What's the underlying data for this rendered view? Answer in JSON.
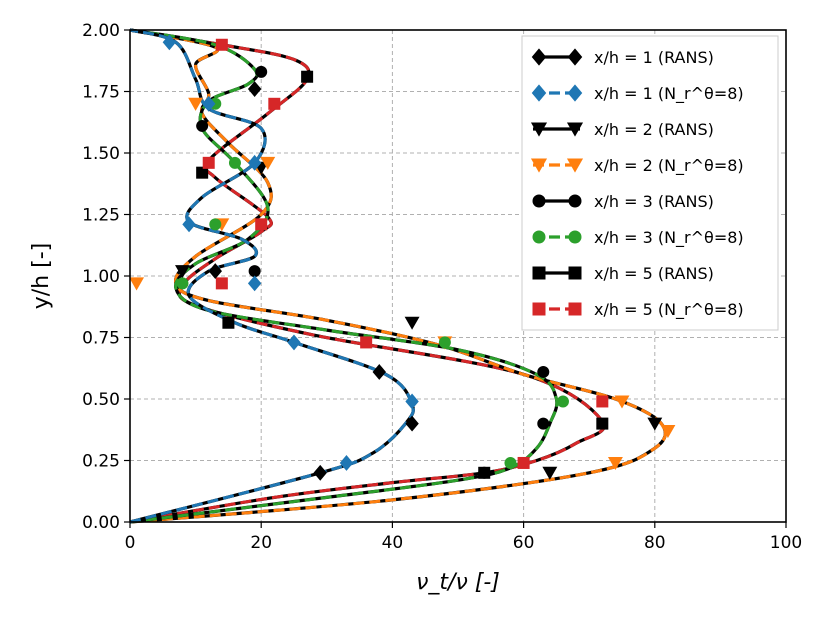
{
  "chart_data": {
    "type": "line",
    "title": "",
    "xlabel": "ν_t/ν [-]",
    "ylabel": "y/h [-]",
    "xlim": [
      0,
      100
    ],
    "ylim": [
      0,
      2
    ],
    "xticks": [
      "0",
      "20",
      "40",
      "60",
      "80",
      "100"
    ],
    "yticks": [
      "0.00",
      "0.25",
      "0.50",
      "0.75",
      "1.00",
      "1.25",
      "1.50",
      "1.75",
      "2.00"
    ],
    "grid": true,
    "legend_position": "top-right",
    "legend": [
      "x/h = 1 (RANS)",
      "x/h = 1 (N_r^θ=8)",
      "x/h = 2 (RANS)",
      "x/h = 2 (N_r^θ=8)",
      "x/h = 3 (RANS)",
      "x/h = 3 (N_r^θ=8)",
      "x/h = 5 (RANS)",
      "x/h = 5 (N_r^θ=8)"
    ],
    "series": [
      {
        "name": "x/h = 5 (RANS)",
        "color": "#000000",
        "style": "solid",
        "marker": "square",
        "x": [
          0,
          22,
          40,
          54,
          62,
          68,
          72,
          60,
          28,
          10,
          8,
          13,
          20,
          21,
          13,
          12,
          21,
          27,
          25,
          14,
          0
        ],
        "y": [
          0.0,
          0.1,
          0.16,
          0.2,
          0.25,
          0.32,
          0.41,
          0.6,
          0.76,
          0.88,
          0.96,
          1.07,
          1.18,
          1.24,
          1.4,
          1.47,
          1.66,
          1.8,
          1.88,
          1.94,
          2.0
        ]
      },
      {
        "name": "x/h = 5 (N_r^θ=8)",
        "color": "#d62728",
        "style": "dashed",
        "marker": "square",
        "x": [
          0,
          22,
          40,
          54,
          62,
          68,
          72,
          60,
          28,
          10,
          8,
          13,
          20,
          21,
          13,
          12,
          21,
          27,
          25,
          14,
          0
        ],
        "y": [
          0.0,
          0.1,
          0.16,
          0.2,
          0.25,
          0.32,
          0.41,
          0.6,
          0.76,
          0.88,
          0.96,
          1.07,
          1.18,
          1.24,
          1.4,
          1.47,
          1.66,
          1.8,
          1.88,
          1.94,
          2.0
        ]
      },
      {
        "name": "x/h = 2 (RANS)",
        "color": "#000000",
        "style": "solid",
        "marker": "triangle-down",
        "x": [
          0,
          40,
          70,
          80,
          81,
          74,
          60,
          47,
          30,
          12,
          7,
          10,
          20,
          21,
          15,
          11,
          12,
          10,
          13,
          0
        ],
        "y": [
          0.0,
          0.09,
          0.2,
          0.3,
          0.4,
          0.5,
          0.6,
          0.72,
          0.82,
          0.9,
          0.97,
          1.08,
          1.25,
          1.38,
          1.54,
          1.66,
          1.74,
          1.86,
          1.93,
          2.0
        ]
      },
      {
        "name": "x/h = 2 (N_r^θ=8)",
        "color": "#ff7f0e",
        "style": "dashed",
        "marker": "triangle-down",
        "x": [
          0,
          40,
          70,
          80,
          81,
          74,
          60,
          47,
          30,
          12,
          7,
          10,
          20,
          21,
          15,
          11,
          12,
          10,
          13,
          0
        ],
        "y": [
          0.0,
          0.09,
          0.2,
          0.3,
          0.4,
          0.5,
          0.6,
          0.72,
          0.82,
          0.9,
          0.97,
          1.08,
          1.25,
          1.38,
          1.54,
          1.66,
          1.74,
          1.86,
          1.93,
          2.0
        ]
      },
      {
        "name": "x/h = 3 (RANS)",
        "color": "#000000",
        "style": "solid",
        "marker": "circle",
        "x": [
          0,
          30,
          50,
          58,
          62,
          64,
          65,
          62,
          50,
          30,
          12,
          7,
          10,
          18,
          21,
          16,
          11,
          12,
          18,
          19,
          13,
          0
        ],
        "y": [
          0.0,
          0.1,
          0.17,
          0.22,
          0.3,
          0.4,
          0.5,
          0.6,
          0.7,
          0.78,
          0.86,
          0.95,
          1.05,
          1.15,
          1.28,
          1.46,
          1.6,
          1.71,
          1.78,
          1.84,
          1.94,
          2.0
        ]
      },
      {
        "name": "x/h = 3 (N_r^θ=8)",
        "color": "#2ca02c",
        "style": "dashed",
        "marker": "circle",
        "x": [
          0,
          30,
          50,
          58,
          62,
          64,
          65,
          62,
          50,
          30,
          12,
          7,
          10,
          18,
          21,
          16,
          11,
          12,
          18,
          19,
          13,
          0
        ],
        "y": [
          0.0,
          0.1,
          0.17,
          0.22,
          0.3,
          0.4,
          0.5,
          0.6,
          0.7,
          0.78,
          0.86,
          0.95,
          1.05,
          1.15,
          1.28,
          1.46,
          1.6,
          1.71,
          1.78,
          1.84,
          1.94,
          2.0
        ]
      },
      {
        "name": "x/h = 1 (RANS)",
        "color": "#000000",
        "style": "solid",
        "marker": "diamond",
        "x": [
          0,
          29,
          37,
          42,
          43,
          39,
          25,
          16,
          9,
          12,
          19,
          17,
          9,
          11,
          19,
          20,
          12,
          10,
          7,
          0
        ],
        "y": [
          0.0,
          0.2,
          0.28,
          0.4,
          0.48,
          0.6,
          0.73,
          0.81,
          0.92,
          1.02,
          1.08,
          1.15,
          1.22,
          1.32,
          1.46,
          1.6,
          1.68,
          1.8,
          1.95,
          2.0
        ]
      },
      {
        "name": "x/h = 1 (N_r^θ=8)",
        "color": "#1f77b4",
        "style": "dashed",
        "marker": "diamond",
        "x": [
          0,
          29,
          37,
          42,
          43,
          39,
          25,
          16,
          9,
          12,
          19,
          17,
          9,
          11,
          19,
          20,
          12,
          10,
          7,
          0
        ],
        "y": [
          0.0,
          0.2,
          0.28,
          0.4,
          0.48,
          0.6,
          0.73,
          0.81,
          0.92,
          1.02,
          1.08,
          1.15,
          1.22,
          1.32,
          1.46,
          1.6,
          1.68,
          1.8,
          1.95,
          2.0
        ]
      }
    ],
    "markers": {
      "x/h = 1 (RANS)": {
        "x": [
          29,
          38,
          43,
          13,
          19
        ],
        "y": [
          0.2,
          0.61,
          0.4,
          1.02,
          1.76
        ]
      },
      "x/h = 1 (N_r^θ=8)": {
        "x": [
          33,
          43,
          25,
          19,
          9,
          19,
          12,
          6
        ],
        "y": [
          0.24,
          0.49,
          0.73,
          0.97,
          1.21,
          1.46,
          1.7,
          1.95
        ]
      },
      "x/h = 2 (RANS)": {
        "x": [
          64,
          80,
          43,
          8,
          20
        ],
        "y": [
          0.2,
          0.4,
          0.81,
          1.02,
          1.44
        ]
      },
      "x/h = 2 (N_r^θ=8)": {
        "x": [
          74,
          82,
          75,
          48,
          1,
          14,
          21,
          10
        ],
        "y": [
          0.24,
          0.37,
          0.49,
          0.73,
          0.97,
          1.21,
          1.46,
          1.7
        ]
      },
      "x/h = 3 (RANS)": {
        "x": [
          54,
          63,
          63,
          19,
          11,
          20
        ],
        "y": [
          0.2,
          0.4,
          0.61,
          1.02,
          1.61,
          1.83
        ]
      },
      "x/h = 3 (N_r^θ=8)": {
        "x": [
          58,
          66,
          48,
          8,
          13,
          16,
          13
        ],
        "y": [
          0.24,
          0.49,
          0.73,
          0.97,
          1.21,
          1.46,
          1.7
        ]
      },
      "x/h = 5 (RANS)": {
        "x": [
          54,
          72,
          15,
          11,
          27
        ],
        "y": [
          0.2,
          0.4,
          0.81,
          1.42,
          1.81
        ]
      },
      "x/h = 5 (N_r^θ=8)": {
        "x": [
          60,
          72,
          36,
          14,
          20,
          12,
          22,
          14
        ],
        "y": [
          0.24,
          0.49,
          0.73,
          0.97,
          1.21,
          1.46,
          1.7,
          1.94
        ]
      }
    }
  }
}
